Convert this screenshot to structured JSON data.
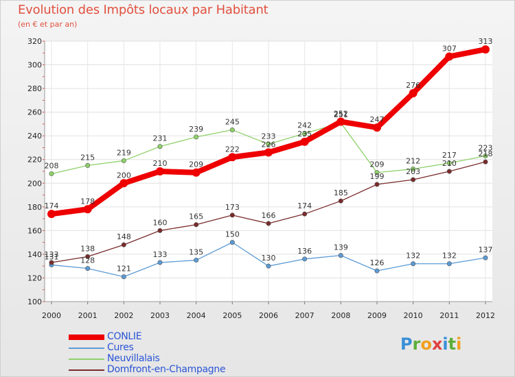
{
  "header": {
    "title": "Evolution des Impôts locaux par Habitant",
    "subtitle": "(en € et par an)"
  },
  "logo": {
    "text": "Proxiti",
    "letters": [
      {
        "ch": "P",
        "color": "#3a8fd8"
      },
      {
        "ch": "r",
        "color": "#5cae3a"
      },
      {
        "ch": "o",
        "color": "#f0a020"
      },
      {
        "ch": "x",
        "color": "#e04040"
      },
      {
        "ch": "i",
        "color": "#3a8fd8"
      },
      {
        "ch": "t",
        "color": "#5cae3a"
      },
      {
        "ch": "i",
        "color": "#f0a020"
      }
    ]
  },
  "chart_data": {
    "type": "line",
    "title": "Evolution des Impôts locaux par Habitant",
    "subtitle": "(en € et par an)",
    "xlabel": "",
    "ylabel": "",
    "x": [
      "2000",
      "2001",
      "2002",
      "2003",
      "2004",
      "2005",
      "2006",
      "2007",
      "2008",
      "2009",
      "2010",
      "2011",
      "2012"
    ],
    "ylim": [
      100,
      320
    ],
    "yticks": [
      100,
      120,
      140,
      160,
      180,
      200,
      220,
      240,
      260,
      280,
      300,
      320
    ],
    "grid": true,
    "legend_position": "bottom-left",
    "series": [
      {
        "name": "CONLIE",
        "color": "#ee0000",
        "emphasis": true,
        "values": [
          174,
          178,
          200,
          210,
          209,
          222,
          226,
          235,
          252,
          247,
          276,
          307,
          313
        ],
        "labels": [
          "174",
          "178",
          "200",
          "210",
          "209",
          "222",
          "226",
          "235",
          "252",
          "247",
          "276",
          "307",
          "313"
        ]
      },
      {
        "name": "Cures",
        "color": "#5b9bd5",
        "values": [
          131,
          128,
          121,
          133,
          135,
          150,
          130,
          136,
          139,
          126,
          132,
          132,
          137
        ],
        "labels": [
          "131",
          "128",
          "121",
          "133",
          "135",
          "150",
          "130",
          "136",
          "139",
          "126",
          "132",
          "132",
          "137"
        ]
      },
      {
        "name": "Neuvillalais",
        "color": "#8fd16a",
        "values": [
          208,
          215,
          219,
          231,
          239,
          245,
          233,
          242,
          251,
          209,
          212,
          217,
          223
        ],
        "labels": [
          "208",
          "215",
          "219",
          "231",
          "239",
          "245",
          "233",
          "242",
          "251",
          "209",
          "212",
          "217",
          "223"
        ]
      },
      {
        "name": "Domfront-en-Champagne",
        "color": "#7a2a2a",
        "values": [
          133,
          138,
          148,
          160,
          165,
          173,
          166,
          174,
          185,
          199,
          203,
          210,
          218
        ],
        "labels": [
          "133",
          "138",
          "148",
          "160",
          "165",
          "173",
          "166",
          "174",
          "185",
          "199",
          "203",
          "210",
          "218"
        ]
      }
    ]
  }
}
